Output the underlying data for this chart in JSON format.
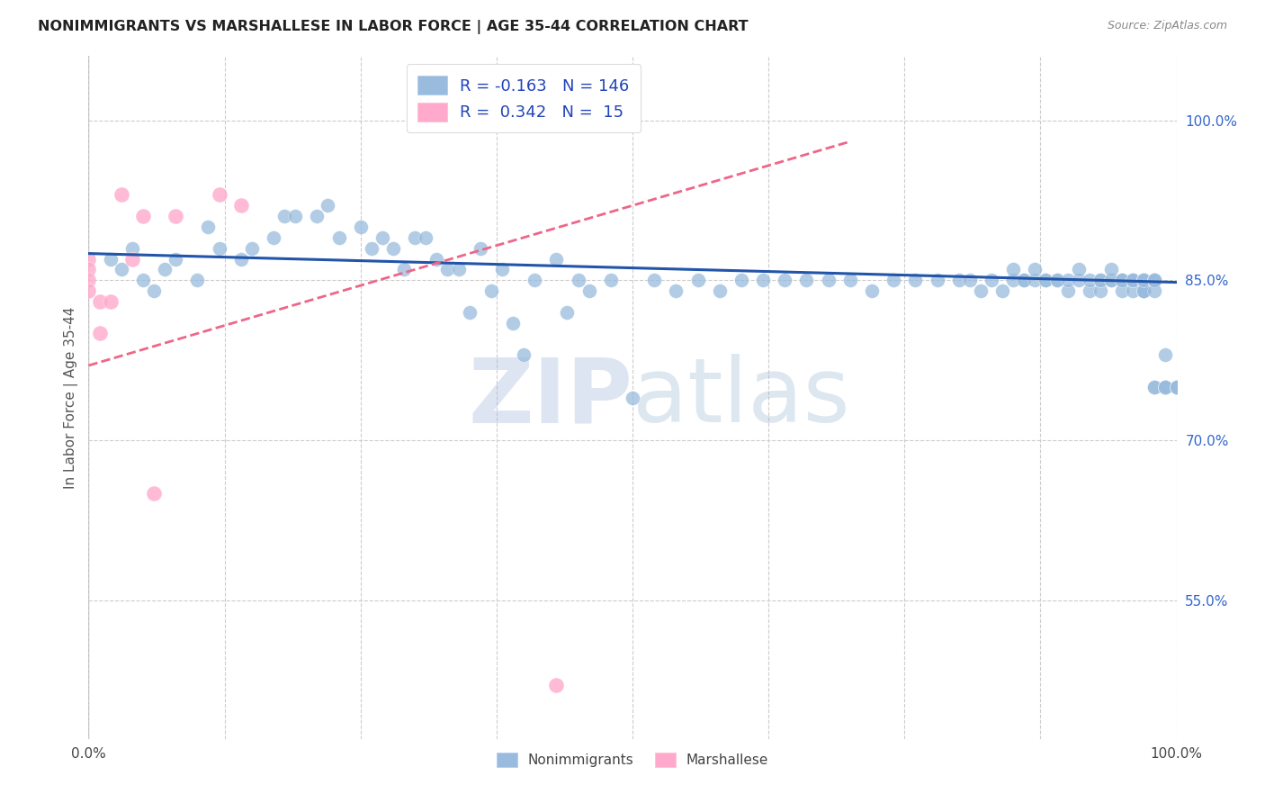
{
  "title": "NONIMMIGRANTS VS MARSHALLESE IN LABOR FORCE | AGE 35-44 CORRELATION CHART",
  "source": "Source: ZipAtlas.com",
  "ylabel": "In Labor Force | Age 35-44",
  "xlim": [
    0.0,
    1.0
  ],
  "ylim": [
    0.42,
    1.06
  ],
  "right_yticks": [
    1.0,
    0.85,
    0.7,
    0.55
  ],
  "right_ytick_labels": [
    "100.0%",
    "85.0%",
    "70.0%",
    "55.0%"
  ],
  "nonimmigrant_R": -0.163,
  "nonimmigrant_N": 146,
  "marshallese_R": 0.342,
  "marshallese_N": 15,
  "blue_color": "#99BBDD",
  "blue_line_color": "#2255AA",
  "pink_color": "#FFAACC",
  "pink_line_color": "#EE6688",
  "legend_blue_label": "Nonimmigrants",
  "legend_pink_label": "Marshallese",
  "watermark_zip": "ZIP",
  "watermark_atlas": "atlas",
  "grid_color": "#CCCCCC",
  "background_color": "#FFFFFF",
  "nonimmigrant_x": [
    0.02,
    0.03,
    0.04,
    0.05,
    0.06,
    0.07,
    0.08,
    0.1,
    0.11,
    0.12,
    0.14,
    0.15,
    0.17,
    0.18,
    0.19,
    0.21,
    0.22,
    0.23,
    0.25,
    0.26,
    0.27,
    0.28,
    0.29,
    0.3,
    0.31,
    0.32,
    0.33,
    0.34,
    0.35,
    0.36,
    0.37,
    0.38,
    0.39,
    0.4,
    0.41,
    0.43,
    0.44,
    0.45,
    0.46,
    0.48,
    0.5,
    0.52,
    0.54,
    0.56,
    0.58,
    0.6,
    0.62,
    0.64,
    0.66,
    0.68,
    0.7,
    0.72,
    0.74,
    0.76,
    0.78,
    0.8,
    0.81,
    0.82,
    0.83,
    0.84,
    0.85,
    0.85,
    0.86,
    0.86,
    0.87,
    0.87,
    0.88,
    0.88,
    0.89,
    0.89,
    0.9,
    0.9,
    0.91,
    0.91,
    0.92,
    0.92,
    0.93,
    0.93,
    0.93,
    0.94,
    0.94,
    0.94,
    0.95,
    0.95,
    0.95,
    0.95,
    0.96,
    0.96,
    0.96,
    0.96,
    0.96,
    0.97,
    0.97,
    0.97,
    0.97,
    0.97,
    0.97,
    0.97,
    0.97,
    0.97,
    0.97,
    0.97,
    0.97,
    0.97,
    0.97,
    0.97,
    0.97,
    0.97,
    0.97,
    0.97,
    0.97,
    0.97,
    0.97,
    0.97,
    0.97,
    0.98,
    0.98,
    0.98,
    0.98,
    0.98,
    0.98,
    0.98,
    0.98,
    0.98,
    0.98,
    0.98,
    0.98,
    0.98,
    0.99,
    0.99,
    0.99,
    0.99,
    0.99,
    0.99,
    0.99,
    0.99,
    1.0,
    1.0,
    1.0,
    1.0,
    1.0,
    1.0,
    1.0,
    1.0,
    1.0,
    1.0
  ],
  "nonimmigrant_y": [
    0.87,
    0.86,
    0.88,
    0.85,
    0.84,
    0.86,
    0.87,
    0.85,
    0.9,
    0.88,
    0.87,
    0.88,
    0.89,
    0.91,
    0.91,
    0.91,
    0.92,
    0.89,
    0.9,
    0.88,
    0.89,
    0.88,
    0.86,
    0.89,
    0.89,
    0.87,
    0.86,
    0.86,
    0.82,
    0.88,
    0.84,
    0.86,
    0.81,
    0.78,
    0.85,
    0.87,
    0.82,
    0.85,
    0.84,
    0.85,
    0.74,
    0.85,
    0.84,
    0.85,
    0.84,
    0.85,
    0.85,
    0.85,
    0.85,
    0.85,
    0.85,
    0.84,
    0.85,
    0.85,
    0.85,
    0.85,
    0.85,
    0.84,
    0.85,
    0.84,
    0.85,
    0.86,
    0.85,
    0.85,
    0.85,
    0.86,
    0.85,
    0.85,
    0.85,
    0.85,
    0.84,
    0.85,
    0.85,
    0.86,
    0.84,
    0.85,
    0.84,
    0.85,
    0.85,
    0.85,
    0.85,
    0.86,
    0.85,
    0.85,
    0.84,
    0.85,
    0.85,
    0.84,
    0.85,
    0.85,
    0.85,
    0.85,
    0.85,
    0.85,
    0.85,
    0.85,
    0.84,
    0.84,
    0.84,
    0.85,
    0.85,
    0.85,
    0.85,
    0.85,
    0.84,
    0.85,
    0.85,
    0.85,
    0.85,
    0.85,
    0.85,
    0.85,
    0.85,
    0.84,
    0.85,
    0.85,
    0.85,
    0.85,
    0.85,
    0.85,
    0.85,
    0.85,
    0.85,
    0.85,
    0.84,
    0.85,
    0.75,
    0.75,
    0.78,
    0.75,
    0.75,
    0.75,
    0.75,
    0.75,
    0.75,
    0.75,
    0.75,
    0.75,
    0.75,
    0.75,
    0.75,
    0.75,
    0.75,
    0.75,
    0.75,
    0.75
  ],
  "marshallese_x": [
    0.0,
    0.0,
    0.0,
    0.0,
    0.01,
    0.01,
    0.02,
    0.03,
    0.04,
    0.05,
    0.06,
    0.08,
    0.12,
    0.14,
    0.43
  ],
  "marshallese_y": [
    0.87,
    0.86,
    0.85,
    0.84,
    0.83,
    0.8,
    0.83,
    0.93,
    0.87,
    0.91,
    0.65,
    0.91,
    0.93,
    0.92,
    0.47
  ],
  "trend_blue_x0": 0.0,
  "trend_blue_x1": 1.0,
  "trend_blue_y0": 0.875,
  "trend_blue_y1": 0.848,
  "trend_pink_x0": 0.0,
  "trend_pink_x1": 0.7,
  "trend_pink_y0": 0.77,
  "trend_pink_y1": 0.98
}
